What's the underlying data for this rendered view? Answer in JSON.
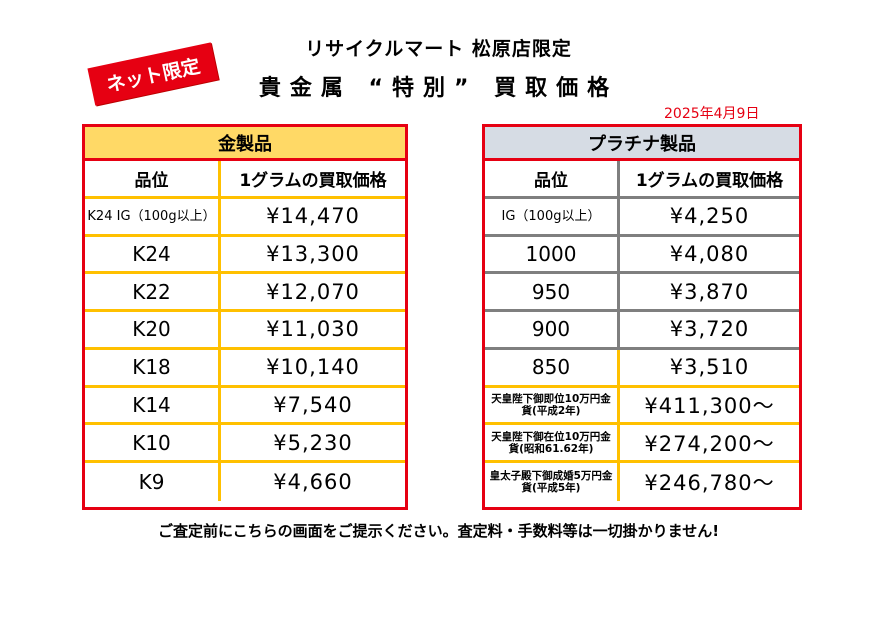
{
  "header": {
    "store": "リサイクルマート 松原店限定",
    "title": "貴金属 “特別” 買取価格",
    "badge": "ネット限定",
    "date": "2025年4月9日"
  },
  "gold": {
    "title": "金製品",
    "col_grade": "品位",
    "col_price": "1グラムの買取価格",
    "rows": [
      {
        "grade": "K24 IG（100g以上）",
        "price": "¥14,470"
      },
      {
        "grade": "K24",
        "price": "¥13,300"
      },
      {
        "grade": "K22",
        "price": "¥12,070"
      },
      {
        "grade": "K20",
        "price": "¥11,030"
      },
      {
        "grade": "K18",
        "price": "¥10,140"
      },
      {
        "grade": "K14",
        "price": "¥7,540"
      },
      {
        "grade": "K10",
        "price": "¥5,230"
      },
      {
        "grade": "K9",
        "price": "¥4,660"
      }
    ]
  },
  "platinum": {
    "title": "プラチナ製品",
    "col_grade": "品位",
    "col_price": "1グラムの買取価格",
    "rows": [
      {
        "grade": "IG（100g以上）",
        "price": "¥4,250"
      },
      {
        "grade": "1000",
        "price": "¥4,080"
      },
      {
        "grade": "950",
        "price": "¥3,870"
      },
      {
        "grade": "900",
        "price": "¥3,720"
      },
      {
        "grade": "850",
        "price": "¥3,510"
      },
      {
        "grade": "天皇陛下御即位10万円金貨(平成2年)",
        "price": "¥411,300～"
      },
      {
        "grade": "天皇陛下御在位10万円金貨(昭和61.62年)",
        "price": "¥274,200～"
      },
      {
        "grade": "皇太子殿下御成婚5万円金貨(平成5年)",
        "price": "¥246,780～"
      }
    ]
  },
  "footer": {
    "note": "ご査定前にこちらの画面をご提示ください。査定料・手数料等は一切掛かりません!"
  },
  "colors": {
    "border_red": "#e60012",
    "gold_header": "#ffd966",
    "platinum_header": "#d6dce4",
    "gold_line": "#ffc000",
    "grey_line": "#7f7f7f"
  }
}
